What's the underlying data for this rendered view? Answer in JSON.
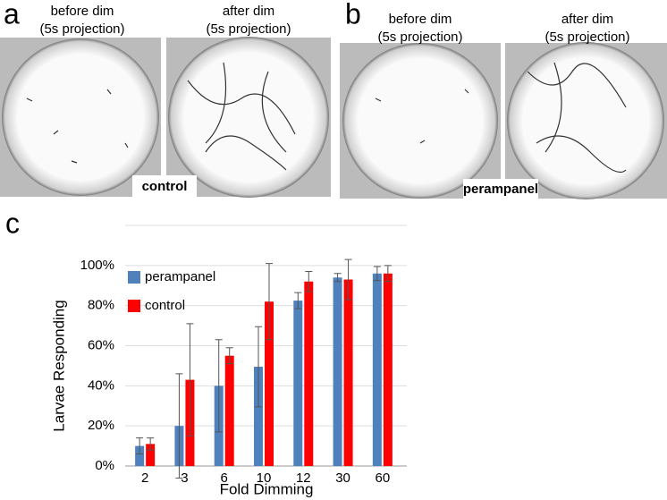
{
  "panels": [
    {
      "label": "a",
      "captions": [
        [
          "before dim",
          "(5s projection)"
        ],
        [
          "after dim",
          "(5s projection)"
        ]
      ],
      "tag": "control"
    },
    {
      "label": "b",
      "captions": [
        [
          "before dim",
          "(5s projection)"
        ],
        [
          "after dim",
          "(5s projection)"
        ]
      ],
      "tag": "perampanel"
    }
  ],
  "chart_data": {
    "type": "bar",
    "panel_label": "c",
    "x_label": "Fold Dimming",
    "y_label": "Larvae Responding",
    "categories": [
      "2",
      "3",
      "6",
      "10",
      "12",
      "30",
      "60"
    ],
    "series": [
      {
        "name": "perampanel",
        "color": "#4f81bd",
        "values": [
          10,
          20,
          40,
          49.5,
          82.5,
          94,
          96
        ],
        "errors": [
          4,
          26,
          23,
          20,
          4,
          2,
          3.5
        ]
      },
      {
        "name": "control",
        "color": "#ff0000",
        "values": [
          11,
          43,
          55,
          82,
          92,
          93,
          96
        ],
        "errors": [
          3,
          28,
          4,
          19,
          5,
          10,
          4
        ]
      }
    ],
    "ylim": [
      0,
      120
    ],
    "yticks": [
      {
        "value": 0,
        "label": "0%"
      },
      {
        "value": 20,
        "label": "20%"
      },
      {
        "value": 40,
        "label": "40%"
      },
      {
        "value": 60,
        "label": "60%"
      },
      {
        "value": 80,
        "label": "80%"
      },
      {
        "value": 100,
        "label": "100%"
      }
    ],
    "grid": true,
    "legend": "top-left"
  }
}
